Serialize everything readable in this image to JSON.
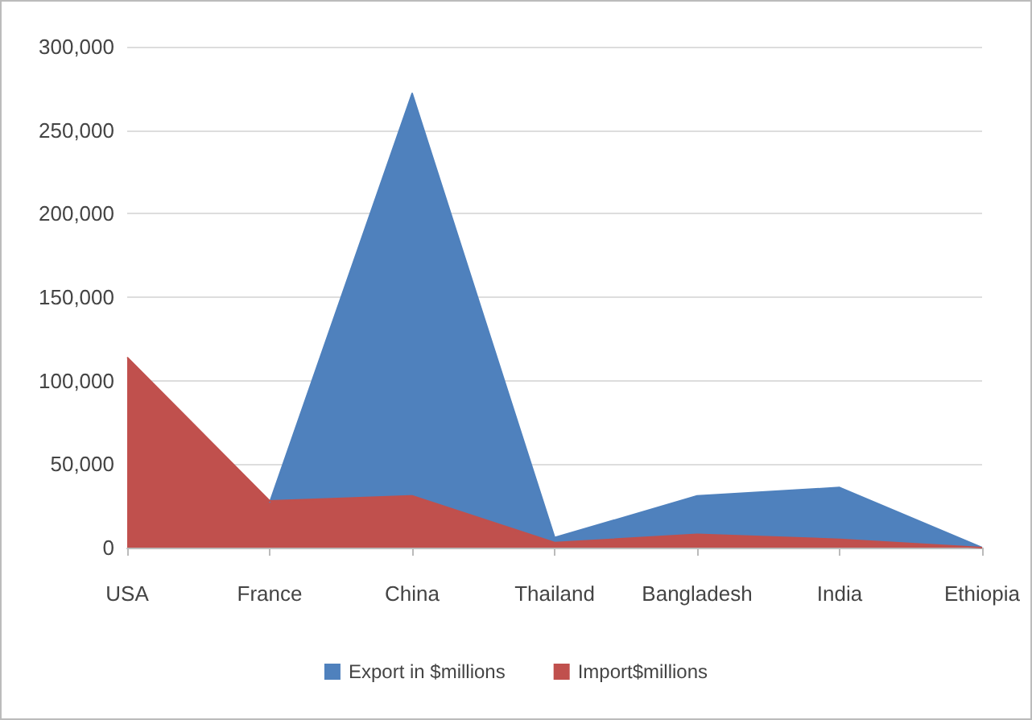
{
  "chart_data": {
    "type": "area",
    "categories": [
      "USA",
      "France",
      "China",
      "Thailand",
      "Bangladesh",
      "India",
      "Ethiopia"
    ],
    "series": [
      {
        "name": "Export in $millions",
        "color": "#4f81bd",
        "values": [
          null,
          27000,
          272000,
          6000,
          31000,
          36000,
          0
        ]
      },
      {
        "name": "Import$millions",
        "color": "#c0504d",
        "values": [
          114000,
          28000,
          31000,
          3000,
          8000,
          5000,
          0
        ]
      }
    ],
    "ylim": [
      0,
      300000
    ],
    "yticks": [
      0,
      {
        "value": 50000,
        "label": "50,000"
      },
      {
        "value": 100000,
        "label": "100,000"
      },
      {
        "value": 150000,
        "label": "150,000"
      },
      {
        "value": 200000,
        "label": "200,000"
      },
      {
        "value": 250000,
        "label": "250,000"
      },
      {
        "value": 300000,
        "label": "300,000"
      }
    ],
    "grid": "y",
    "legend": "bottom",
    "marker": "none"
  }
}
